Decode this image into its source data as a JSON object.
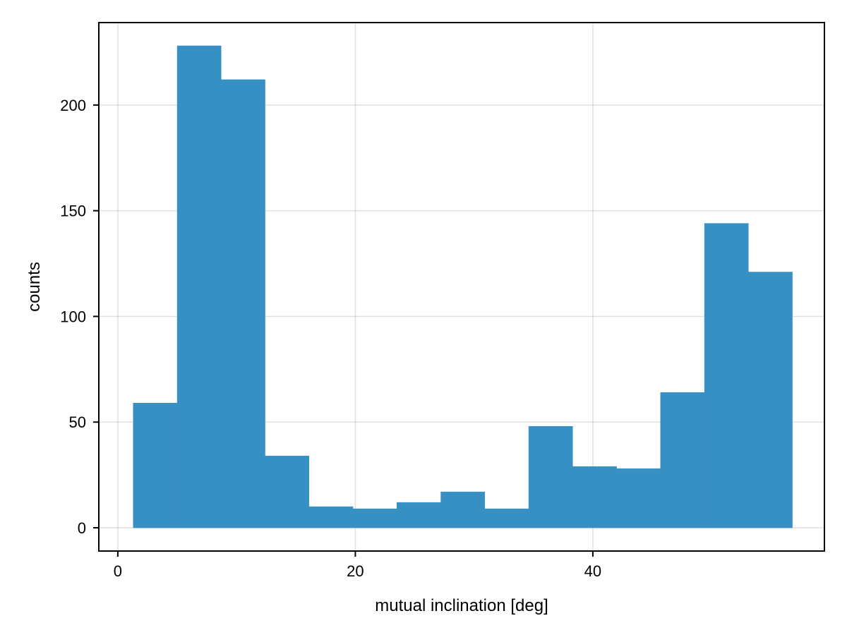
{
  "chart_data": {
    "type": "bar",
    "subtype": "histogram",
    "title": "",
    "xlabel": "mutual inclination [deg]",
    "ylabel": "counts",
    "bin_edges": [
      1.3,
      5.0,
      8.7,
      12.4,
      16.1,
      19.8,
      23.5,
      27.2,
      30.9,
      34.6,
      38.3,
      42.0,
      45.7,
      49.4,
      53.1,
      56.8
    ],
    "values": [
      59,
      228,
      212,
      34,
      10,
      9,
      12,
      17,
      9,
      48,
      29,
      28,
      64,
      144,
      121
    ],
    "xlim": [
      -1.6,
      59.5
    ],
    "ylim": [
      -11,
      239
    ],
    "xticks": [
      0,
      20,
      40
    ],
    "xtick_labels": [
      "0",
      "20",
      "40"
    ],
    "yticks": [
      0,
      50,
      100,
      150,
      200
    ],
    "ytick_labels": [
      "0",
      "50",
      "100",
      "150",
      "200"
    ],
    "grid": true,
    "bar_color": "#3790c4",
    "legend": null
  }
}
